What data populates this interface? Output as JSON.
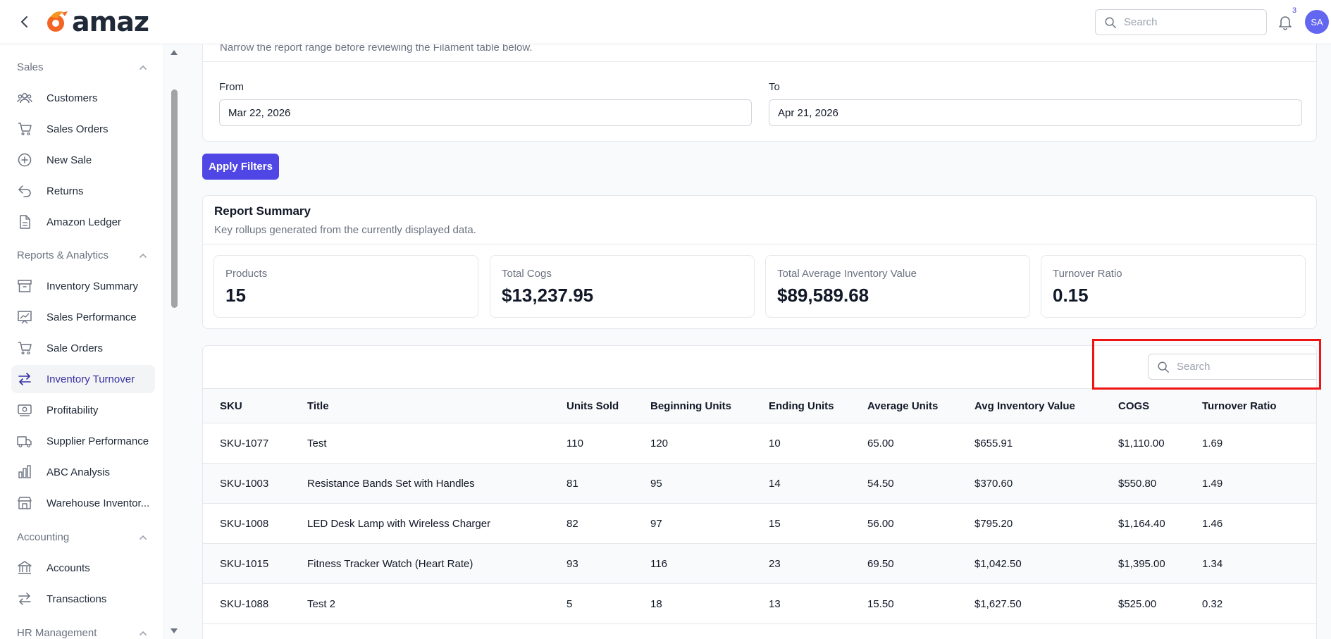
{
  "app": {
    "logo_text": "amaz"
  },
  "topbar": {
    "search_placeholder": "Search",
    "notification_count": "3",
    "avatar_initials": "SA"
  },
  "sidebar": {
    "groups": [
      {
        "label": "Sales",
        "items": [
          {
            "label": "Customers",
            "icon": "users-icon"
          },
          {
            "label": "Sales Orders",
            "icon": "cart-icon"
          },
          {
            "label": "New Sale",
            "icon": "plus-circle-icon"
          },
          {
            "label": "Returns",
            "icon": "return-arrow-icon"
          },
          {
            "label": "Amazon Ledger",
            "icon": "document-icon"
          }
        ]
      },
      {
        "label": "Reports & Analytics",
        "items": [
          {
            "label": "Inventory Summary",
            "icon": "archive-box-icon"
          },
          {
            "label": "Sales Performance",
            "icon": "chart-icon"
          },
          {
            "label": "Sale Orders",
            "icon": "cart-icon"
          },
          {
            "label": "Inventory Turnover",
            "icon": "arrows-swap-icon",
            "active": true
          },
          {
            "label": "Profitability",
            "icon": "banknote-icon"
          },
          {
            "label": "Supplier Performance",
            "icon": "truck-icon"
          },
          {
            "label": "ABC Analysis",
            "icon": "bar-chart-icon"
          },
          {
            "label": "Warehouse Inventor...",
            "icon": "warehouse-icon"
          }
        ]
      },
      {
        "label": "Accounting",
        "items": [
          {
            "label": "Accounts",
            "icon": "bank-icon"
          },
          {
            "label": "Transactions",
            "icon": "arrows-swap-icon"
          }
        ]
      },
      {
        "label": "HR Management",
        "items": []
      }
    ]
  },
  "filters": {
    "description": "Narrow the report range before reviewing the Filament table below.",
    "from_label": "From",
    "from_value": "Mar 22, 2026",
    "to_label": "To",
    "to_value": "Apr 21, 2026",
    "apply_label": "Apply Filters"
  },
  "summary": {
    "title": "Report Summary",
    "subtitle": "Key rollups generated from the currently displayed data.",
    "stats": [
      {
        "label": "Products",
        "value": "15"
      },
      {
        "label": "Total Cogs",
        "value": "$13,237.95"
      },
      {
        "label": "Total Average Inventory Value",
        "value": "$89,589.68"
      },
      {
        "label": "Turnover Ratio",
        "value": "0.15"
      }
    ]
  },
  "table": {
    "search_placeholder": "Search",
    "columns": [
      "SKU",
      "Title",
      "Units Sold",
      "Beginning Units",
      "Ending Units",
      "Average Units",
      "Avg Inventory Value",
      "COGS",
      "Turnover Ratio"
    ],
    "rows": [
      [
        "SKU-1077",
        "Test",
        "110",
        "120",
        "10",
        "65.00",
        "$655.91",
        "$1,110.00",
        "1.69"
      ],
      [
        "SKU-1003",
        "Resistance Bands Set with Handles",
        "81",
        "95",
        "14",
        "54.50",
        "$370.60",
        "$550.80",
        "1.49"
      ],
      [
        "SKU-1008",
        "LED Desk Lamp with Wireless Charger",
        "82",
        "97",
        "15",
        "56.00",
        "$795.20",
        "$1,164.40",
        "1.46"
      ],
      [
        "SKU-1015",
        "Fitness Tracker Watch (Heart Rate)",
        "93",
        "116",
        "23",
        "69.50",
        "$1,042.50",
        "$1,395.00",
        "1.34"
      ],
      [
        "SKU-1088",
        "Test 2",
        "5",
        "18",
        "13",
        "15.50",
        "$1,627.50",
        "$525.00",
        "0.32"
      ]
    ]
  },
  "colors": {
    "primary": "#4f46e5",
    "highlight": "#ef1313",
    "active_nav_text": "#3730a3"
  }
}
